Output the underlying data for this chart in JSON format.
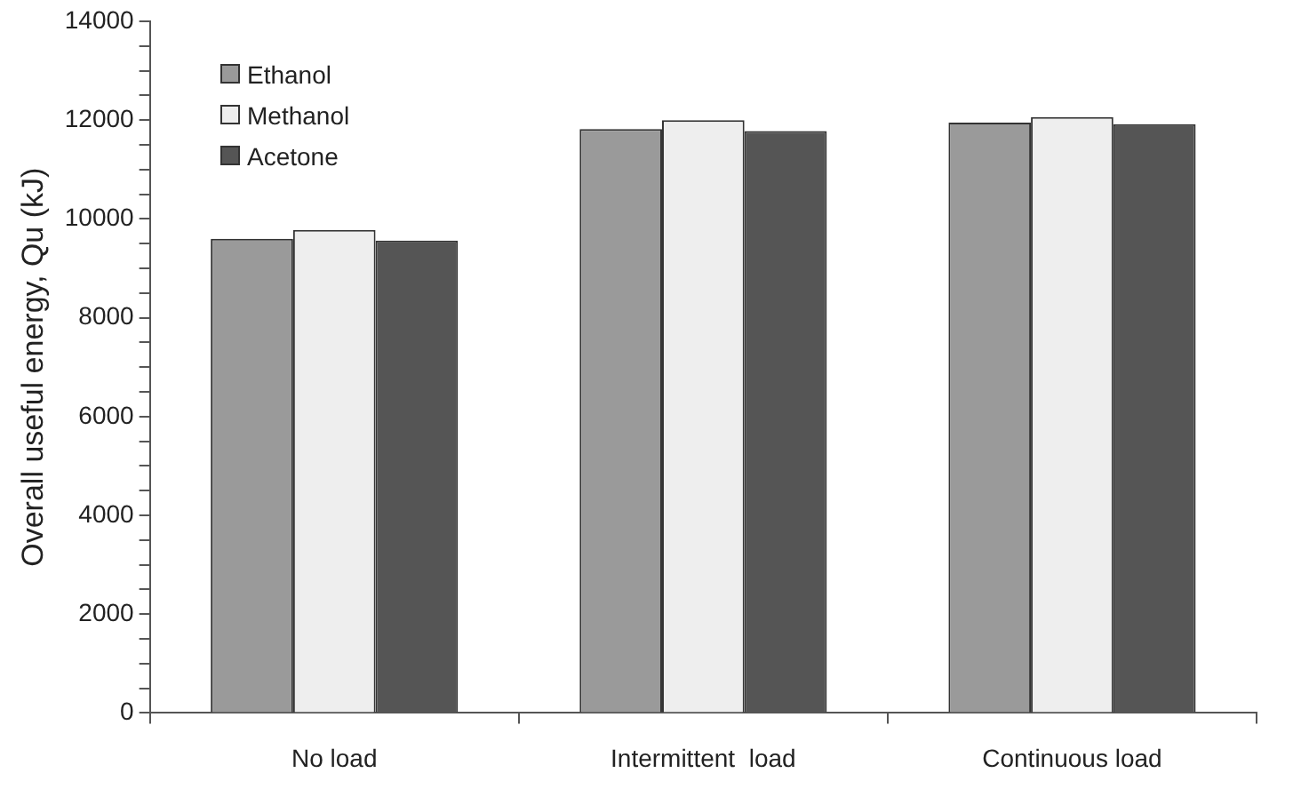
{
  "chart_data": {
    "type": "bar",
    "ylabel": "Overall useful energy, Qu (kJ)",
    "categories": [
      "No load",
      "Intermittent  load",
      "Continuous load"
    ],
    "series": [
      {
        "name": "Ethanol",
        "color": "#9a9a9a",
        "values": [
          9600,
          11820,
          11950
        ]
      },
      {
        "name": "Methanol",
        "color": "#eeeeee",
        "values": [
          9780,
          12000,
          12060
        ]
      },
      {
        "name": "Acetone",
        "color": "#555555",
        "values": [
          9560,
          11780,
          11920
        ]
      }
    ],
    "ylim": [
      0,
      14000
    ],
    "yticks": [
      0,
      {
        "value": 500,
        "label": null
      },
      {
        "value": 1000,
        "label": null
      },
      {
        "value": 1500,
        "label": null
      },
      2000,
      {
        "value": 2500,
        "label": null
      },
      {
        "value": 3000,
        "label": null
      },
      {
        "value": 3500,
        "label": null
      },
      4000,
      {
        "value": 4500,
        "label": null
      },
      {
        "value": 5000,
        "label": null
      },
      {
        "value": 5500,
        "label": null
      },
      6000,
      {
        "value": 6500,
        "label": null
      },
      {
        "value": 7000,
        "label": null
      },
      {
        "value": 7500,
        "label": null
      },
      8000,
      {
        "value": 8500,
        "label": null
      },
      {
        "value": 9000,
        "label": null
      },
      {
        "value": 9500,
        "label": null
      },
      10000,
      {
        "value": 10500,
        "label": null
      },
      {
        "value": 11000,
        "label": null
      },
      {
        "value": 11500,
        "label": null
      },
      12000,
      {
        "value": 12500,
        "label": null
      },
      {
        "value": 13000,
        "label": null
      },
      {
        "value": 13500,
        "label": null
      },
      14000
    ],
    "grid": false,
    "legend": "top left"
  }
}
